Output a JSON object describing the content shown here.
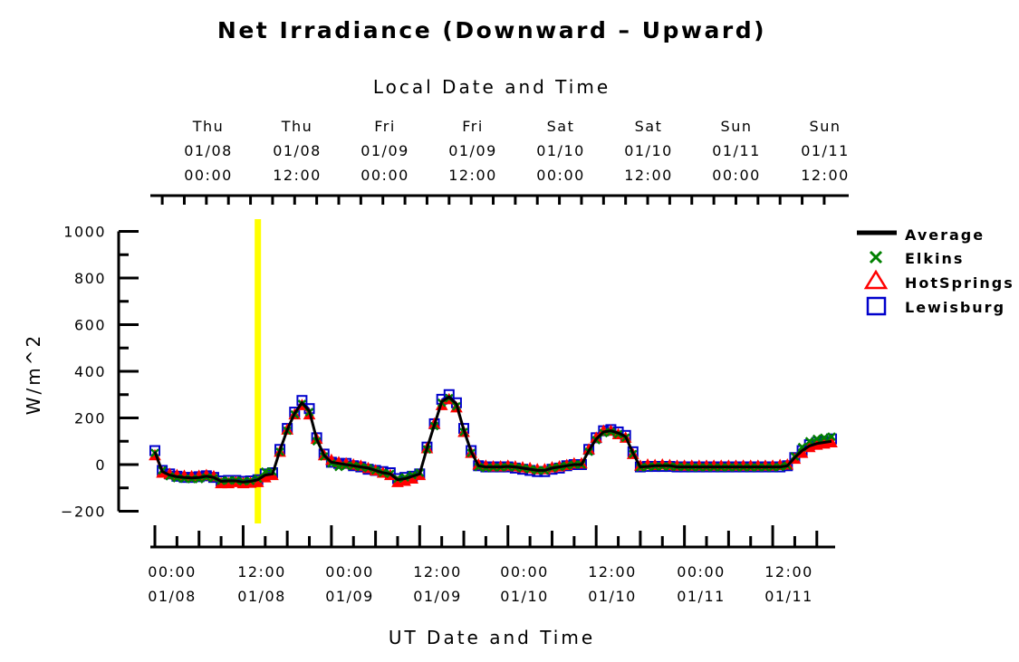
{
  "chart_data": {
    "type": "line",
    "title": "Net Irradiance (Downward – Upward)",
    "top_axis_label": "Local Date and Time",
    "xlabel": "UT Date and Time",
    "ylabel": "W/m^2",
    "ylim": [
      -200,
      1000
    ],
    "yticks": [
      "1000",
      "800",
      "600",
      "400",
      "200",
      "0",
      "−200"
    ],
    "xlim": [
      "01/08 00:00 UT",
      "01/11 20:00 UT"
    ],
    "x_units": "hours UT after 01/08 00:00",
    "bottom_ticks": [
      {
        "time": "00:00",
        "date": "01/08"
      },
      {
        "time": "12:00",
        "date": "01/08"
      },
      {
        "time": "00:00",
        "date": "01/09"
      },
      {
        "time": "12:00",
        "date": "01/09"
      },
      {
        "time": "00:00",
        "date": "01/10"
      },
      {
        "time": "12:00",
        "date": "01/10"
      },
      {
        "time": "00:00",
        "date": "01/11"
      },
      {
        "time": "12:00",
        "date": "01/11"
      }
    ],
    "top_ticks": [
      {
        "day": "Thu",
        "date": "01/08",
        "time": "00:00"
      },
      {
        "day": "Thu",
        "date": "01/08",
        "time": "12:00"
      },
      {
        "day": "Fri",
        "date": "01/09",
        "time": "00:00"
      },
      {
        "day": "Fri",
        "date": "01/09",
        "time": "12:00"
      },
      {
        "day": "Sat",
        "date": "01/10",
        "time": "00:00"
      },
      {
        "day": "Sat",
        "date": "01/10",
        "time": "12:00"
      },
      {
        "day": "Sun",
        "date": "01/11",
        "time": "00:00"
      },
      {
        "day": "Sun",
        "date": "01/11",
        "time": "12:00"
      }
    ],
    "marker_line": {
      "x": 14,
      "color": "#ffff00"
    },
    "legend_position": "right",
    "series": [
      {
        "name": "Average",
        "color": "#000000",
        "style": "line",
        "x": [
          0,
          1,
          2,
          3,
          4,
          5,
          6,
          7,
          8,
          9,
          10,
          11,
          12,
          13,
          14,
          15,
          16,
          17,
          18,
          19,
          20,
          21,
          22,
          23,
          24,
          25,
          26,
          27,
          28,
          29,
          30,
          31,
          32,
          33,
          34,
          35,
          36,
          37,
          38,
          39,
          40,
          41,
          42,
          43,
          44,
          45,
          46,
          47,
          48,
          49,
          50,
          51,
          52,
          53,
          54,
          55,
          56,
          57,
          58,
          59,
          60,
          61,
          62,
          63,
          64,
          65,
          66,
          67,
          68,
          69,
          70,
          71,
          72,
          73,
          74,
          75,
          76,
          77,
          78,
          79,
          80,
          81,
          82,
          83,
          84,
          85,
          86,
          87,
          88,
          89,
          90,
          91,
          92
        ],
        "y": [
          55,
          -30,
          -45,
          -52,
          -55,
          -57,
          -55,
          -50,
          -55,
          -72,
          -70,
          -70,
          -75,
          -72,
          -65,
          -45,
          -40,
          60,
          150,
          220,
          265,
          230,
          110,
          40,
          10,
          5,
          0,
          -5,
          -10,
          -15,
          -25,
          -35,
          -40,
          -65,
          -60,
          -50,
          -40,
          70,
          170,
          270,
          290,
          260,
          150,
          55,
          -5,
          -10,
          -10,
          -10,
          -8,
          -10,
          -15,
          -20,
          -25,
          -25,
          -15,
          -10,
          -5,
          0,
          0,
          60,
          110,
          140,
          145,
          135,
          120,
          50,
          -10,
          -8,
          -5,
          -5,
          -5,
          -10,
          -10,
          -10,
          -10,
          -10,
          -10,
          -10,
          -10,
          -10,
          -10,
          -10,
          -10,
          -10,
          -10,
          -10,
          -5,
          30,
          60,
          80,
          90,
          95,
          100
        ]
      },
      {
        "name": "Elkins",
        "color": "#008000",
        "style": "x",
        "x": [
          0,
          1,
          2,
          3,
          4,
          5,
          6,
          7,
          8,
          9,
          10,
          11,
          12,
          13,
          14,
          15,
          16,
          17,
          18,
          19,
          20,
          21,
          22,
          23,
          24,
          25,
          26,
          27,
          28,
          29,
          30,
          31,
          32,
          33,
          34,
          35,
          36,
          37,
          38,
          39,
          40,
          41,
          42,
          43,
          44,
          45,
          46,
          47,
          48,
          49,
          50,
          51,
          52,
          53,
          54,
          55,
          56,
          57,
          58,
          59,
          60,
          61,
          62,
          63,
          64,
          65,
          66,
          67,
          68,
          69,
          70,
          71,
          72,
          73,
          74,
          75,
          76,
          77,
          78,
          79,
          80,
          81,
          82,
          83,
          84,
          85,
          86,
          87,
          88,
          89,
          90,
          91,
          92
        ],
        "y": [
          50,
          -25,
          -50,
          -58,
          -60,
          -62,
          -62,
          -55,
          -58,
          -70,
          -68,
          -68,
          -72,
          -70,
          -60,
          -30,
          -30,
          55,
          145,
          215,
          260,
          225,
          100,
          35,
          5,
          -10,
          -5,
          -5,
          -10,
          -15,
          -25,
          -35,
          -40,
          -60,
          -55,
          -45,
          -35,
          65,
          165,
          265,
          285,
          250,
          140,
          50,
          -10,
          -15,
          -12,
          -12,
          -10,
          -12,
          -15,
          -20,
          -25,
          -25,
          -15,
          -10,
          -5,
          0,
          0,
          55,
          105,
          135,
          140,
          130,
          115,
          45,
          -12,
          -10,
          -8,
          -8,
          -8,
          -10,
          -10,
          -12,
          -12,
          -12,
          -12,
          -12,
          -12,
          -12,
          -12,
          -12,
          -12,
          -12,
          -12,
          -10,
          -5,
          35,
          75,
          100,
          110,
          115,
          120
        ]
      },
      {
        "name": "HotSprings",
        "color": "#ff0000",
        "style": "triangle",
        "x": [
          0,
          1,
          2,
          3,
          4,
          5,
          6,
          7,
          8,
          9,
          10,
          11,
          12,
          13,
          14,
          15,
          16,
          17,
          18,
          19,
          20,
          21,
          22,
          23,
          24,
          25,
          26,
          27,
          28,
          29,
          30,
          31,
          32,
          33,
          34,
          35,
          36,
          37,
          38,
          39,
          40,
          41,
          42,
          43,
          44,
          45,
          46,
          47,
          48,
          49,
          50,
          51,
          52,
          53,
          54,
          55,
          56,
          57,
          58,
          59,
          60,
          61,
          62,
          63,
          64,
          65,
          66,
          67,
          68,
          69,
          70,
          71,
          72,
          73,
          74,
          75,
          76,
          77,
          78,
          79,
          80,
          81,
          82,
          83,
          84,
          85,
          86,
          87,
          88,
          89,
          90,
          91,
          92
        ],
        "y": [
          40,
          -35,
          -40,
          -45,
          -48,
          -50,
          -48,
          -45,
          -50,
          -80,
          -80,
          -75,
          -80,
          -78,
          -75,
          -55,
          -45,
          55,
          150,
          215,
          255,
          215,
          110,
          40,
          20,
          10,
          5,
          0,
          -5,
          -15,
          -25,
          -35,
          -45,
          -75,
          -70,
          -60,
          -45,
          70,
          175,
          255,
          280,
          245,
          140,
          50,
          0,
          -5,
          -8,
          -8,
          -5,
          -8,
          -12,
          -15,
          -20,
          -20,
          -12,
          -8,
          -2,
          5,
          5,
          65,
          115,
          145,
          145,
          130,
          115,
          45,
          -5,
          0,
          -2,
          0,
          -2,
          -5,
          -5,
          -5,
          -5,
          -5,
          -5,
          -5,
          -5,
          -5,
          -5,
          -5,
          -5,
          -5,
          -5,
          -2,
          0,
          25,
          50,
          75,
          85,
          90,
          95
        ]
      },
      {
        "name": "Lewisburg",
        "color": "#0000cc",
        "style": "square",
        "x": [
          0,
          1,
          2,
          3,
          4,
          5,
          6,
          7,
          8,
          9,
          10,
          11,
          12,
          13,
          14,
          15,
          16,
          17,
          18,
          19,
          20,
          21,
          22,
          23,
          24,
          25,
          26,
          27,
          28,
          29,
          30,
          31,
          32,
          33,
          34,
          35,
          36,
          37,
          38,
          39,
          40,
          41,
          42,
          43,
          44,
          45,
          46,
          47,
          48,
          49,
          50,
          51,
          52,
          53,
          54,
          55,
          56,
          57,
          58,
          59,
          60,
          61,
          62,
          63,
          64,
          65,
          66,
          67,
          68,
          69,
          70,
          71,
          72,
          73,
          74,
          75,
          76,
          77,
          78,
          79,
          80,
          81,
          82,
          83,
          84,
          85,
          86,
          87,
          88,
          89,
          90,
          91,
          92
        ],
        "y": [
          60,
          -25,
          -40,
          -50,
          -55,
          -55,
          -52,
          -48,
          -55,
          -70,
          -68,
          -68,
          -72,
          -70,
          -65,
          -40,
          -35,
          65,
          155,
          225,
          275,
          240,
          115,
          45,
          10,
          5,
          5,
          -5,
          -10,
          -20,
          -25,
          -30,
          -35,
          -60,
          -55,
          -50,
          -40,
          75,
          175,
          280,
          300,
          265,
          155,
          60,
          -5,
          -10,
          -10,
          -10,
          -10,
          -15,
          -20,
          -25,
          -30,
          -30,
          -20,
          -15,
          -5,
          0,
          0,
          65,
          115,
          145,
          150,
          140,
          125,
          55,
          -10,
          -8,
          -8,
          -8,
          -8,
          -10,
          -10,
          -10,
          -10,
          -10,
          -10,
          -10,
          -10,
          -10,
          -10,
          -10,
          -10,
          -10,
          -10,
          -10,
          -5,
          30,
          60,
          85,
          95,
          100,
          110
        ]
      }
    ]
  }
}
